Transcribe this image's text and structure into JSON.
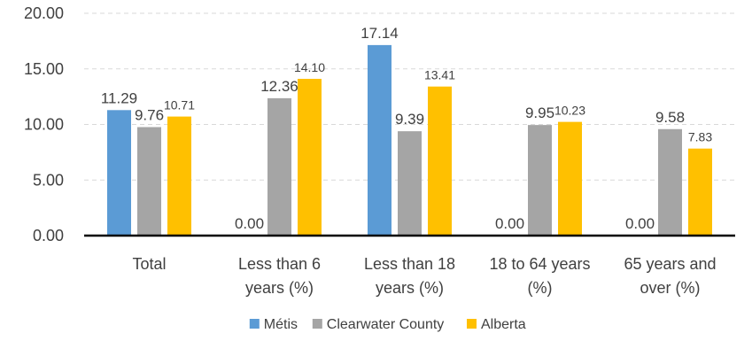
{
  "chart_data": {
    "type": "bar",
    "title": "",
    "xlabel": "",
    "ylabel": "",
    "ylim": [
      0,
      20
    ],
    "yticks": [
      "0.00",
      "5.00",
      "10.00",
      "15.00",
      "20.00"
    ],
    "grid": true,
    "legend_position": "bottom",
    "categories": [
      [
        "Total"
      ],
      [
        "Less than 6",
        "years (%)"
      ],
      [
        "Less than 18",
        "years (%)"
      ],
      [
        "18 to 64 years",
        "(%)"
      ],
      [
        "65 years and",
        "over (%)"
      ]
    ],
    "series": [
      {
        "name": "Métis",
        "color": "#5B9BD5",
        "values": [
          11.29,
          0.0,
          17.14,
          0.0,
          0.0
        ],
        "labels": [
          "11.29",
          "0.00",
          "17.14",
          "0.00",
          "0.00"
        ]
      },
      {
        "name": "Clearwater County",
        "color": "#A5A5A5",
        "values": [
          9.76,
          12.36,
          9.39,
          9.95,
          9.58
        ],
        "labels": [
          "9.76",
          "12.36",
          "9.39",
          "9.95",
          "9.58"
        ]
      },
      {
        "name": "Alberta",
        "color": "#FFC000",
        "values": [
          10.71,
          14.1,
          13.41,
          10.23,
          7.83
        ],
        "labels": [
          "10.71",
          "14.10",
          "13.41",
          "10.23",
          "7.83"
        ]
      }
    ]
  }
}
